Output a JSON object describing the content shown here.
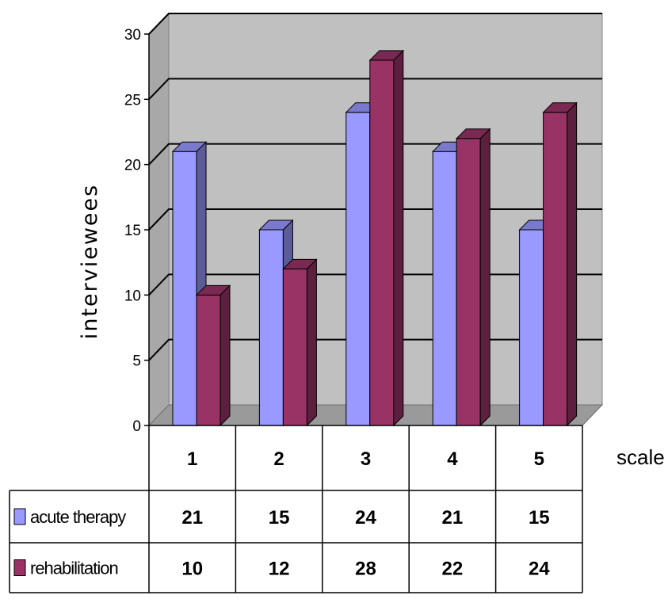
{
  "chart_data": {
    "type": "bar",
    "title": "",
    "ylabel": "interviewees",
    "xlabel": "scale",
    "categories": [
      "1",
      "2",
      "3",
      "4",
      "5"
    ],
    "ylim": [
      0,
      30
    ],
    "yticks": [
      0,
      5,
      10,
      15,
      20,
      25,
      30
    ],
    "grid": true,
    "legend_placement": "data table below chart",
    "series": [
      {
        "name": "acute therapy",
        "values": [
          21,
          15,
          24,
          21,
          15
        ],
        "color": "#9999ff"
      },
      {
        "name": "rehabilitation",
        "values": [
          10,
          12,
          28,
          22,
          24
        ],
        "color": "#993366"
      }
    ]
  }
}
